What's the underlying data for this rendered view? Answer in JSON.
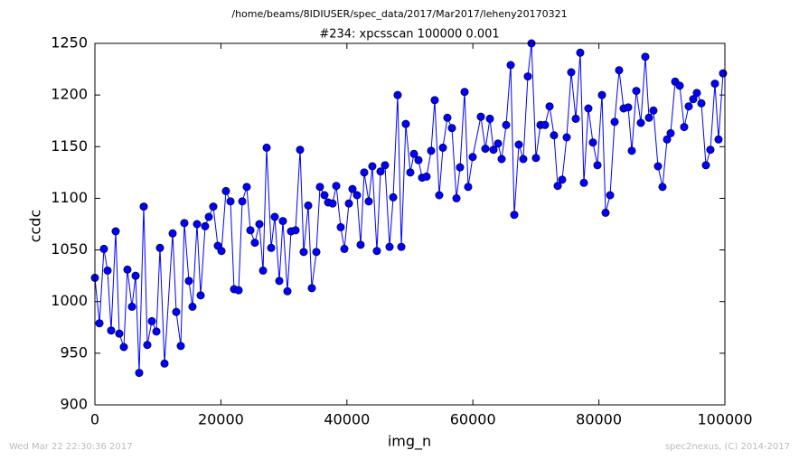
{
  "chart_data": {
    "type": "line",
    "title": "/home/beams/8IDIUSER/spec_data/2017/Mar2017/leheny20170321",
    "subtitle": "#234: xpcsscan 100000 0.001",
    "xlabel": "img_n",
    "ylabel": "ccdc",
    "annotations": [
      "Wed Mar 22 22:30:36 2017",
      "spec2nexus, (C) 2014-2017"
    ],
    "x": [
      0,
      720,
      1430,
      2010,
      2580,
      3300,
      3870,
      4590,
      5160,
      5880,
      6460,
      7030,
      7750,
      8320,
      9040,
      9760,
      10330,
      11050,
      12340,
      12910,
      13630,
      14200,
      14920,
      15490,
      16210,
      16790,
      17500,
      18080,
      18790,
      19510,
      20090,
      20800,
      21520,
      22090,
      22810,
      23390,
      24100,
      24680,
      25390,
      26110,
      26690,
      27260,
      27980,
      28550,
      29270,
      29840,
      30560,
      31130,
      31850,
      32570,
      33140,
      33860,
      34430,
      35150,
      35720,
      36440,
      37020,
      37730,
      38310,
      39020,
      39600,
      40320,
      40890,
      41610,
      42180,
      42750,
      43470,
      44040,
      44760,
      45340,
      46050,
      46770,
      47350,
      48060,
      48640,
      49350,
      50070,
      50650,
      51360,
      51940,
      52650,
      53370,
      53940,
      54660,
      55240,
      55950,
      56670,
      57390,
      57960,
      58680,
      59250,
      59970,
      61260,
      61980,
      62700,
      63270,
      63990,
      64560,
      65280,
      66000,
      66570,
      67290,
      68000,
      68720,
      69300,
      70010,
      70730,
      71450,
      72170,
      72880,
      73460,
      74170,
      74890,
      75610,
      76330,
      77040,
      77620,
      78330,
      79050,
      79770,
      80490,
      81060,
      81780,
      82500,
      83210,
      83930,
      84650,
      85220,
      85940,
      86660,
      87370,
      87950,
      88660,
      89380,
      90100,
      90820,
      91390,
      92110,
      92830,
      93540,
      94260,
      94980,
      95550,
      96270,
      96990,
      97700,
      98420,
      98990,
      99710
    ],
    "series": [
      {
        "name": "ccdc",
        "color": "#0000ff",
        "values": [
          1023,
          979,
          1051,
          1030,
          972,
          1068,
          969,
          956,
          1031,
          995,
          1025,
          931,
          1092,
          958,
          981,
          971,
          1052,
          940,
          1066,
          990,
          957,
          1076,
          1020,
          995,
          1075,
          1006,
          1073,
          1082,
          1092,
          1054,
          1049,
          1107,
          1097,
          1012,
          1011,
          1097,
          1111,
          1069,
          1057,
          1075,
          1030,
          1149,
          1052,
          1082,
          1020,
          1078,
          1010,
          1068,
          1069,
          1147,
          1048,
          1093,
          1013,
          1048,
          1111,
          1103,
          1096,
          1095,
          1112,
          1072,
          1051,
          1095,
          1109,
          1103,
          1055,
          1125,
          1097,
          1131,
          1049,
          1126,
          1132,
          1053,
          1101,
          1200,
          1053,
          1172,
          1125,
          1143,
          1137,
          1120,
          1121,
          1146,
          1195,
          1103,
          1149,
          1178,
          1168,
          1100,
          1130,
          1203,
          1111,
          1140,
          1179,
          1148,
          1177,
          1147,
          1153,
          1138,
          1171,
          1229,
          1084,
          1152,
          1138,
          1218,
          1250,
          1139,
          1171,
          1171,
          1189,
          1161,
          1112,
          1118,
          1159,
          1222,
          1177,
          1241,
          1115,
          1187,
          1154,
          1132,
          1200,
          1086,
          1103,
          1174,
          1224,
          1187,
          1188,
          1146,
          1204,
          1173,
          1237,
          1178,
          1185,
          1131,
          1111,
          1157,
          1163,
          1213,
          1209,
          1169,
          1189,
          1196,
          1202,
          1192,
          1132,
          1147,
          1211,
          1157,
          1221
        ]
      }
    ],
    "xlim": [
      0,
      100000
    ],
    "xticks": [
      0,
      20000,
      40000,
      60000,
      80000,
      100000
    ],
    "ylim": [
      900,
      1250
    ],
    "yticks": [
      900,
      950,
      1000,
      1050,
      1100,
      1150,
      1200,
      1250
    ],
    "grid": false
  }
}
